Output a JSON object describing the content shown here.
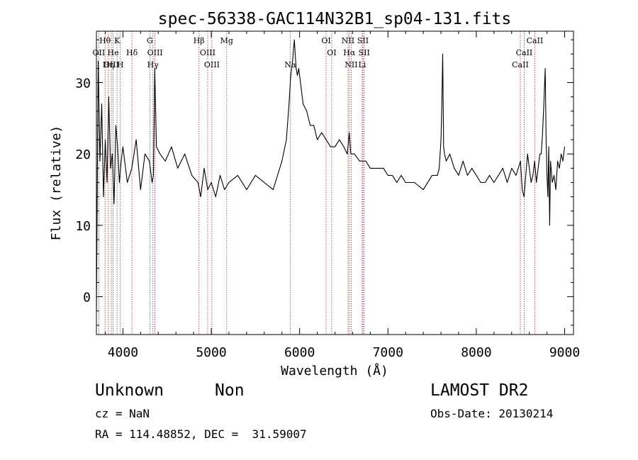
{
  "chart_data": {
    "type": "line",
    "title": "spec-56338-GAC114N32B1_sp04-131.fits",
    "xlabel": "Wavelength (Å)",
    "ylabel": "Flux (relative)",
    "xlim": [
      3700,
      9100
    ],
    "ylim": [
      -5.3,
      37.2
    ],
    "xticks": [
      4000,
      5000,
      6000,
      7000,
      8000,
      9000
    ],
    "xtick_labels": [
      "4000",
      "5000",
      "6000",
      "7000",
      "8000",
      "9000"
    ],
    "yticks": [
      0,
      10,
      20,
      30
    ],
    "ytick_labels": [
      "0",
      "10",
      "20",
      "30"
    ],
    "grid": false,
    "line_color": "#000000",
    "marker_color": "#8b0000",
    "series": [
      {
        "x": [
          3700,
          3720,
          3740,
          3760,
          3780,
          3800,
          3820,
          3840,
          3860,
          3880,
          3900,
          3920,
          3940,
          3960,
          3980,
          4000,
          4050,
          4100,
          4150,
          4200,
          4250,
          4300,
          4330,
          4345,
          4360,
          4380,
          4420,
          4480,
          4550,
          4620,
          4700,
          4780,
          4850,
          4880,
          4920,
          4960,
          5000,
          5050,
          5100,
          5150,
          5200,
          5300,
          5400,
          5500,
          5600,
          5700,
          5750,
          5800,
          5850,
          5880,
          5900,
          5920,
          5940,
          5960,
          5975,
          5990,
          6010,
          6040,
          6080,
          6120,
          6160,
          6200,
          6250,
          6300,
          6350,
          6400,
          6450,
          6500,
          6540,
          6562,
          6580,
          6620,
          6680,
          6720,
          6750,
          6800,
          6850,
          6900,
          6950,
          7000,
          7050,
          7100,
          7150,
          7200,
          7300,
          7400,
          7500,
          7560,
          7580,
          7600,
          7610,
          7620,
          7630,
          7640,
          7660,
          7700,
          7750,
          7800,
          7850,
          7900,
          7950,
          8000,
          8050,
          8100,
          8150,
          8200,
          8250,
          8300,
          8350,
          8400,
          8450,
          8500,
          8520,
          8540,
          8560,
          8580,
          8600,
          8620,
          8640,
          8660,
          8680,
          8700,
          8720,
          8735,
          8750,
          8765,
          8780,
          8790,
          8800,
          8810,
          8820,
          8830,
          8840,
          8860,
          8880,
          8900,
          8920,
          8940,
          8960,
          8980,
          9000
        ],
        "y": [
          -2,
          33,
          19,
          27,
          14,
          22,
          16,
          28,
          18,
          20,
          13,
          24,
          21,
          16,
          19,
          21,
          16,
          18,
          22,
          15,
          20,
          19,
          16,
          17,
          32,
          21,
          20,
          19,
          21,
          18,
          20,
          17,
          16,
          14,
          18,
          15,
          16,
          14,
          17,
          15,
          16,
          17,
          15,
          17,
          16,
          15,
          17,
          19,
          22,
          27,
          31,
          33,
          36,
          32,
          31,
          32,
          30,
          27,
          26,
          24,
          24,
          22,
          23,
          22,
          21,
          21,
          22,
          21,
          20,
          23,
          20,
          20,
          19,
          19,
          19,
          18,
          18,
          18,
          18,
          17,
          17,
          16,
          17,
          16,
          16,
          15,
          17,
          17,
          18,
          22,
          27,
          34,
          21,
          20,
          19,
          20,
          18,
          17,
          19,
          17,
          18,
          17,
          16,
          16,
          17,
          16,
          17,
          18,
          16,
          18,
          17,
          19,
          15,
          14,
          17,
          20,
          18,
          16,
          17,
          19,
          16,
          18,
          20,
          20,
          23,
          27,
          32,
          22,
          17,
          14,
          21,
          10,
          19,
          16,
          17,
          15,
          19,
          18,
          20,
          19,
          21
        ]
      }
    ],
    "annotations": [
      {
        "label": "Hθ",
        "wl": 3798,
        "row": 0
      },
      {
        "label": "K",
        "wl": 3934,
        "row": 0
      },
      {
        "label": "G",
        "wl": 4305,
        "row": 0
      },
      {
        "label": "Hβ",
        "wl": 4861,
        "row": 0
      },
      {
        "label": "Mg",
        "wl": 5175,
        "row": 0
      },
      {
        "label": "OI",
        "wl": 6300,
        "row": 0
      },
      {
        "label": "NII",
        "wl": 6548,
        "row": 0
      },
      {
        "label": "SII",
        "wl": 6717,
        "row": 0
      },
      {
        "label": "CaII",
        "wl": 8662,
        "row": 0
      },
      {
        "label": "OII",
        "wl": 3727,
        "row": 1
      },
      {
        "label": "He",
        "wl": 3889,
        "row": 1
      },
      {
        "label": "Hδ",
        "wl": 4102,
        "row": 1
      },
      {
        "label": "OIII",
        "wl": 4363,
        "row": 1
      },
      {
        "label": "OIII",
        "wl": 4959,
        "row": 1
      },
      {
        "label": "OI",
        "wl": 6363,
        "row": 1
      },
      {
        "label": "Hα",
        "wl": 6563,
        "row": 1
      },
      {
        "label": "SII",
        "wl": 6731,
        "row": 1
      },
      {
        "label": "CaII",
        "wl": 8542,
        "row": 1
      },
      {
        "label": "OIII",
        "wl": 3869,
        "row": 2
      },
      {
        "label": "Hη",
        "wl": 3835,
        "row": 2
      },
      {
        "label": "H",
        "wl": 3970,
        "row": 2
      },
      {
        "label": "Hγ",
        "wl": 4340,
        "row": 2
      },
      {
        "label": "OIII",
        "wl": 5007,
        "row": 2
      },
      {
        "label": "Na",
        "wl": 5893,
        "row": 2
      },
      {
        "label": "NII",
        "wl": 6584,
        "row": 2
      },
      {
        "label": "Li",
        "wl": 6708,
        "row": 2
      },
      {
        "label": "CaII",
        "wl": 8498,
        "row": 2
      }
    ]
  },
  "info": {
    "class": "Unknown",
    "subclass": "Non",
    "survey": "LAMOST DR2",
    "cz": "cz = NaN",
    "obs_date": "Obs-Date: 20130214",
    "coords": "RA = 114.48852, DEC =  31.59007"
  }
}
